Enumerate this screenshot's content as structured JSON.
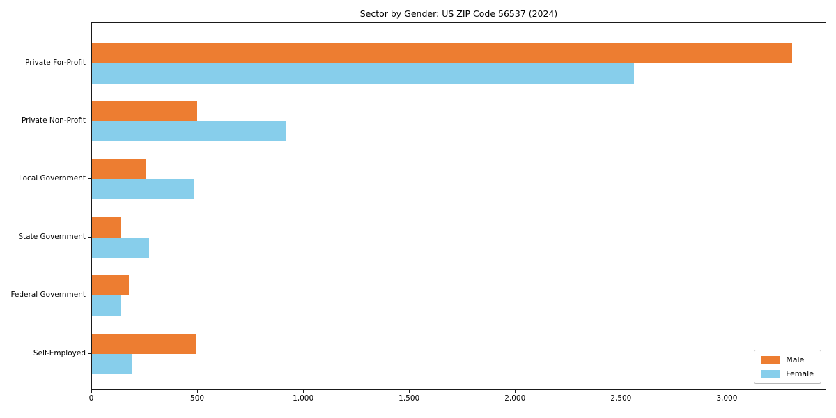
{
  "chart_data": {
    "type": "bar",
    "orientation": "horizontal",
    "title": "Sector by Gender: US ZIP Code 56537 (2024)",
    "categories": [
      "Private For-Profit",
      "Private Non-Profit",
      "Local Government",
      "State Government",
      "Federal Government",
      "Self-Employed"
    ],
    "series": [
      {
        "name": "Male",
        "color": "#ed7d31",
        "values": [
          3304,
          498,
          254,
          137,
          175,
          493
        ]
      },
      {
        "name": "Female",
        "color": "#87ceeb",
        "values": [
          2558,
          914,
          481,
          269,
          134,
          188
        ]
      }
    ],
    "xlabel": "",
    "ylabel": "",
    "xlim": [
      0,
      3469
    ],
    "xticks": [
      0,
      500,
      1000,
      1500,
      2000,
      2500,
      3000
    ],
    "xtick_labels": [
      "0",
      "500",
      "1,000",
      "1,500",
      "2,000",
      "2,500",
      "3,000"
    ],
    "grid": false,
    "legend_position": "lower right",
    "plot_border_color": "#1a1a1a",
    "background": "#ffffff"
  }
}
